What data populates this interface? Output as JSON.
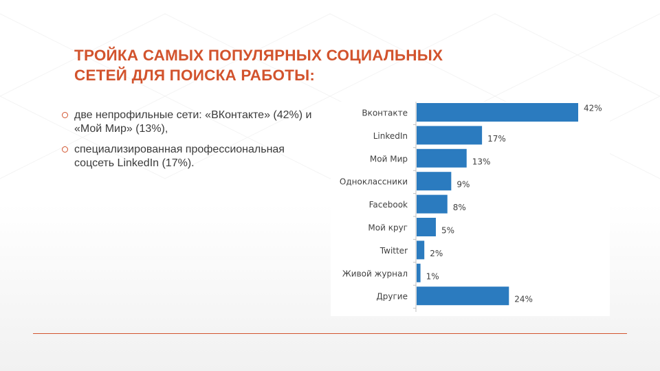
{
  "slide": {
    "title_lines": [
      "ТРОЙКА САМЫХ ПОПУЛЯРНЫХ СОЦИАЛЬНЫХ",
      "СЕТЕЙ ДЛЯ ПОИСКА РАБОТЫ:"
    ],
    "bullets": [
      "две непрофильные сети: «ВКонтакте» (42%) и «Мой Мир» (13%),",
      "специализированная профессиональная соцсеть LinkedIn (17%)."
    ],
    "colors": {
      "accent": "#d2532d",
      "bar": "#2b7bbf",
      "text": "#3a3a3a"
    }
  },
  "chart_data": {
    "type": "bar",
    "orientation": "horizontal",
    "categories": [
      "Вконтакте",
      "LinkedIn",
      "Мой Мир",
      "Одноклассники",
      "Facebook",
      "Мой круг",
      "Twitter",
      "Живой журнал",
      "Другие"
    ],
    "values": [
      42,
      17,
      13,
      9,
      8,
      5,
      2,
      1,
      24
    ],
    "value_labels": [
      "42%",
      "17%",
      "13%",
      "9%",
      "8%",
      "5%",
      "2%",
      "1%",
      "24%"
    ],
    "xlim": [
      0,
      42
    ],
    "title": "",
    "xlabel": "",
    "ylabel": "",
    "grid": false,
    "legend": "none"
  }
}
